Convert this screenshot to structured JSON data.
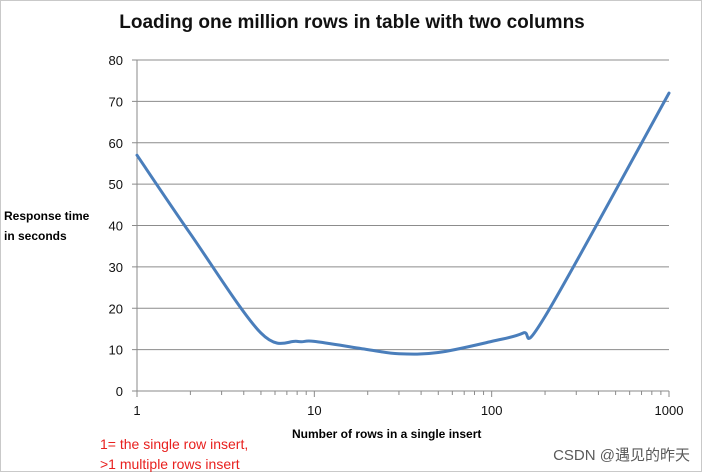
{
  "chart_data": {
    "type": "line",
    "title": "Loading one million rows in table with two columns",
    "xlabel": "Number of rows in a single insert",
    "ylabel": [
      "Response time",
      "in seconds"
    ],
    "x_scale": "log",
    "xlim": [
      1,
      1000
    ],
    "ylim": [
      0,
      80
    ],
    "x_ticks": [
      "1",
      "10",
      "100",
      "1000"
    ],
    "y_ticks": [
      "0",
      "10",
      "20",
      "30",
      "40",
      "50",
      "60",
      "70",
      "80"
    ],
    "grid": "horizontal",
    "line_color": "#4a7ebb",
    "series": [
      {
        "x": [
          1,
          2,
          5,
          8,
          10,
          20,
          30,
          50,
          100,
          150,
          200,
          1000
        ],
        "values": [
          57,
          38,
          14,
          12,
          12,
          10,
          9,
          9.3,
          12,
          14,
          18,
          72
        ]
      }
    ]
  },
  "note": [
    "1= the single row  insert,",
    ">1 multiple rows insert"
  ],
  "watermark": "CSDN @遇见的昨天"
}
